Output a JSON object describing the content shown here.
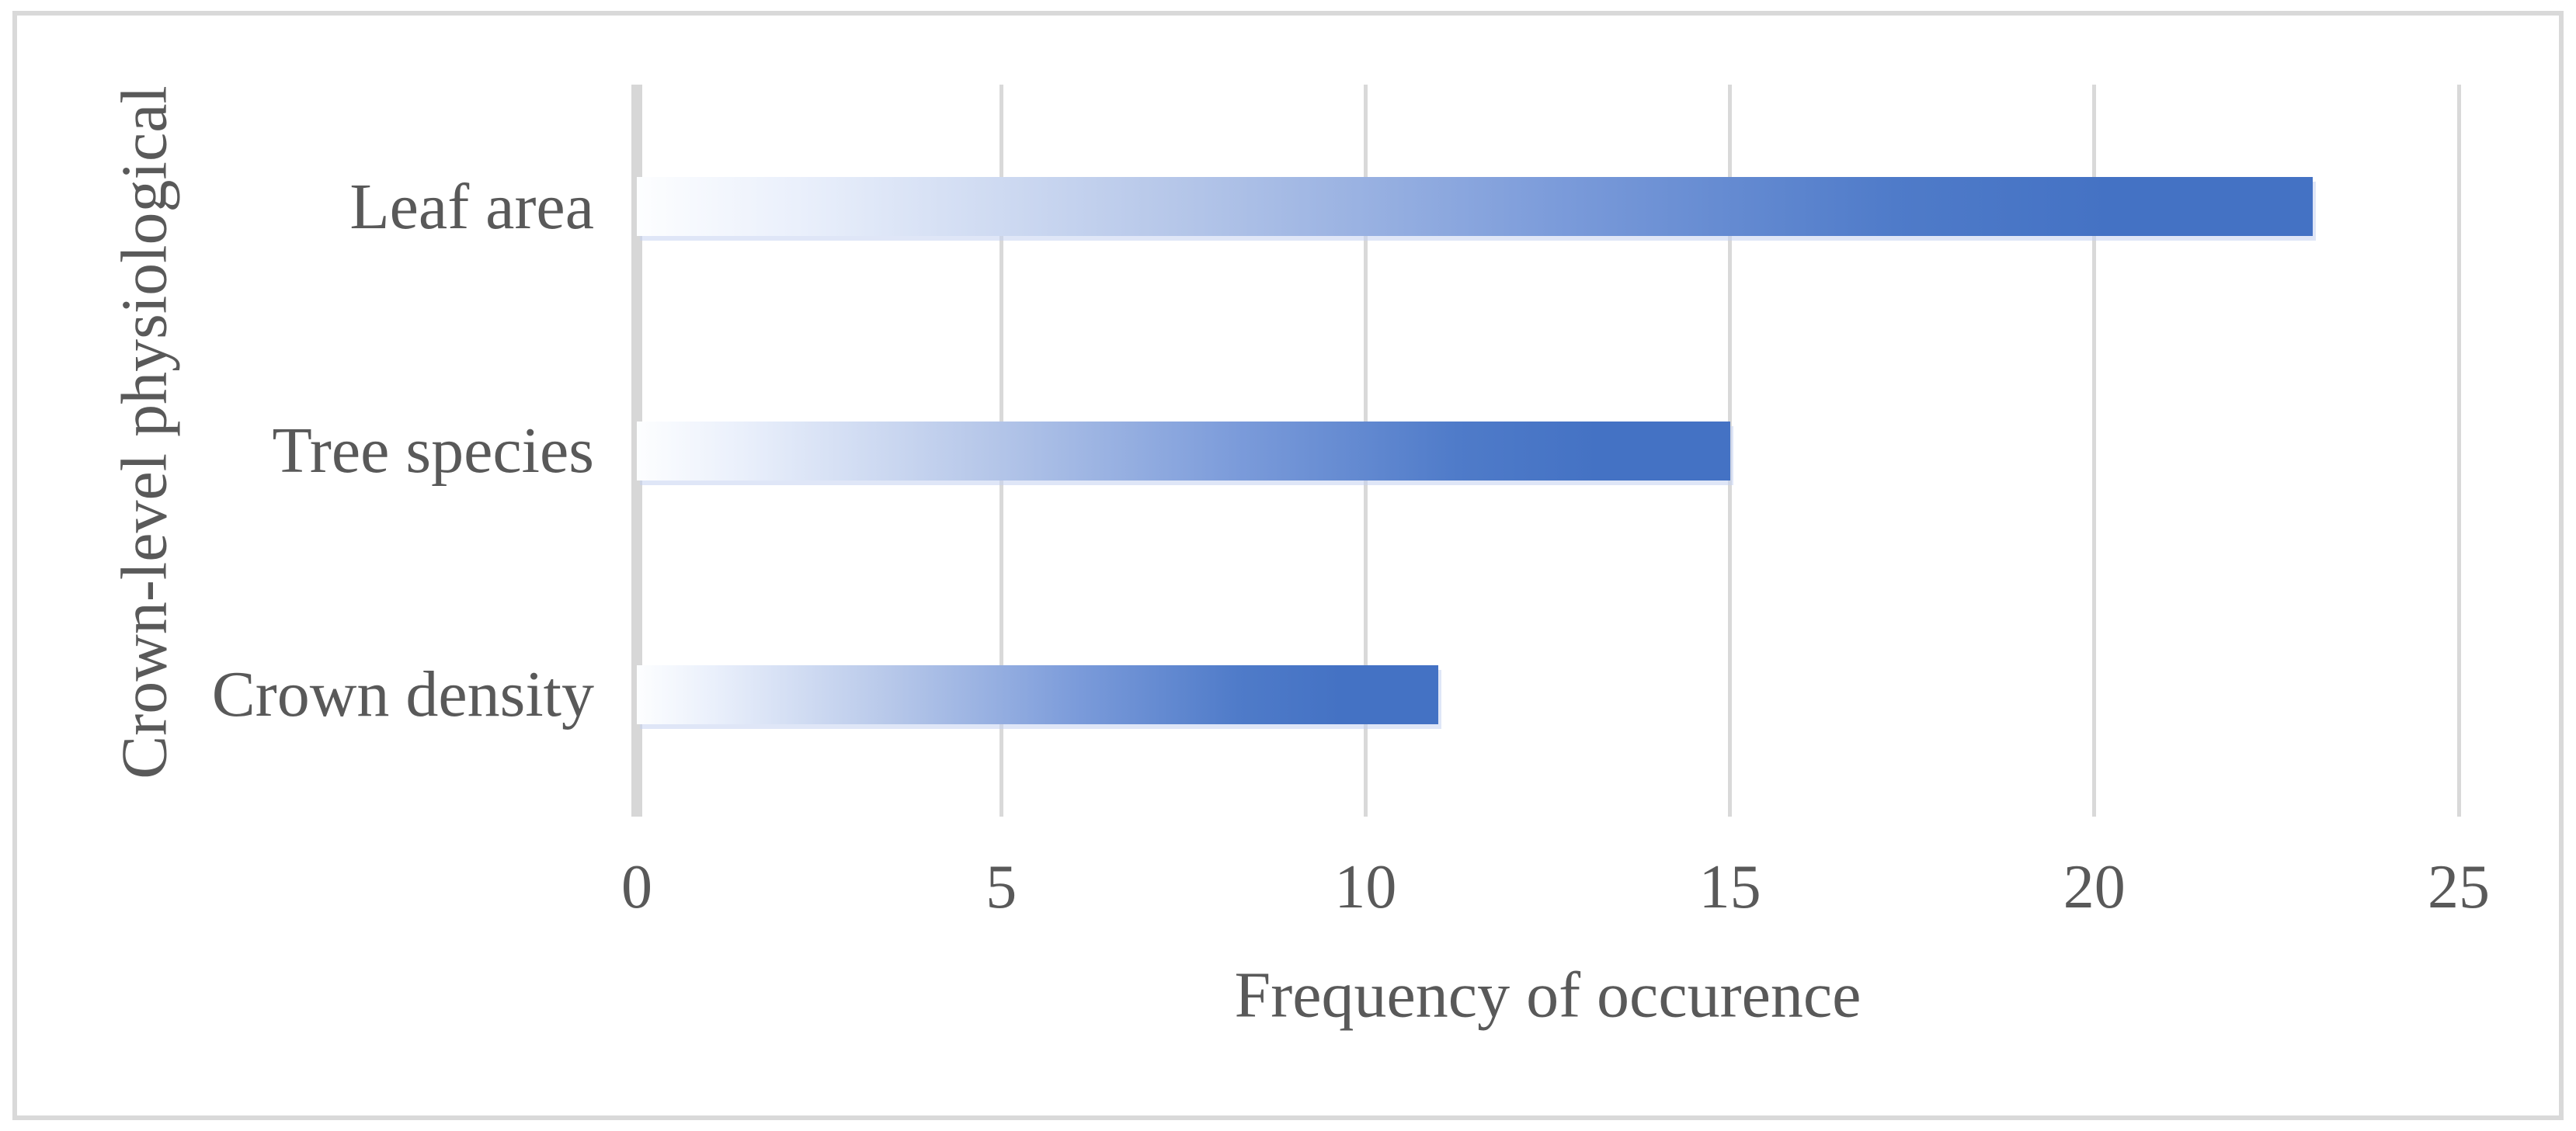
{
  "figure": {
    "type": "document-figure-bar-chart",
    "background": "#ffffff",
    "border_color": "#d9d9d9"
  },
  "chart_data": {
    "type": "bar",
    "orientation": "horizontal",
    "title": "",
    "categories": [
      "Leaf area",
      "Tree species",
      "Crown density"
    ],
    "values": [
      23,
      15,
      11
    ],
    "xlabel": "Frequency of occurence",
    "ylabel": "Crown-level physiological",
    "xlim": [
      0,
      25
    ],
    "xticks": [
      0,
      5,
      10,
      15,
      20,
      25
    ],
    "grid": "vertical-gridlines-on",
    "legend": "none",
    "bar_color": "#4472C4",
    "bar_gradient_start": "#FDFEFF",
    "gridline_color": "#D9D9D9",
    "axis_line_color": "#D7D7D7",
    "text_color": "#595959"
  }
}
